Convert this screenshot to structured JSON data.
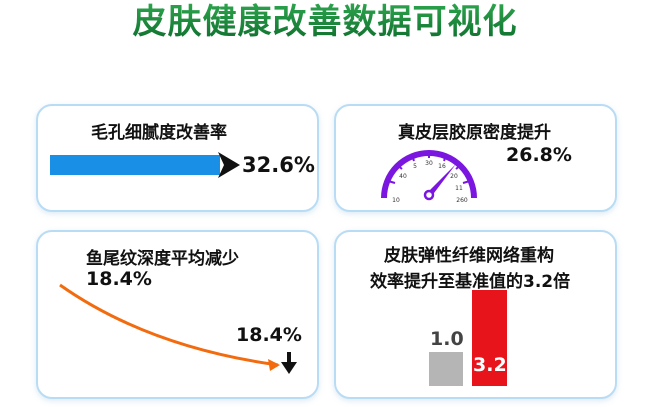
{
  "title": "皮肤健康改善数据可视化",
  "cards": {
    "pore": {
      "label": "毛孔细腻度改善率",
      "value": "32.6%",
      "progress_percent": 32.6,
      "bar_color": "#1a8fe6"
    },
    "collagen": {
      "label": "真皮层胶原密度提升",
      "value": "26.8%",
      "gauge_ticks": [
        "10",
        "40",
        "5",
        "30",
        "16",
        "20",
        "11",
        "260"
      ],
      "gauge_color": "#7a16e0"
    },
    "wrinkle": {
      "label": "鱼尾纹深度平均减少",
      "value_top": "18.4%",
      "value_end": "18.4%",
      "curve_color": "#f26b0f"
    },
    "elastic": {
      "label_line1": "皮肤弹性纤维网络重构",
      "label_line2": "效率提升至基准值的3.2倍",
      "baseline_value": "1.0",
      "improved_value": "3.2",
      "baseline_color": "#b5b5b5",
      "improved_color": "#e8141b"
    }
  }
}
